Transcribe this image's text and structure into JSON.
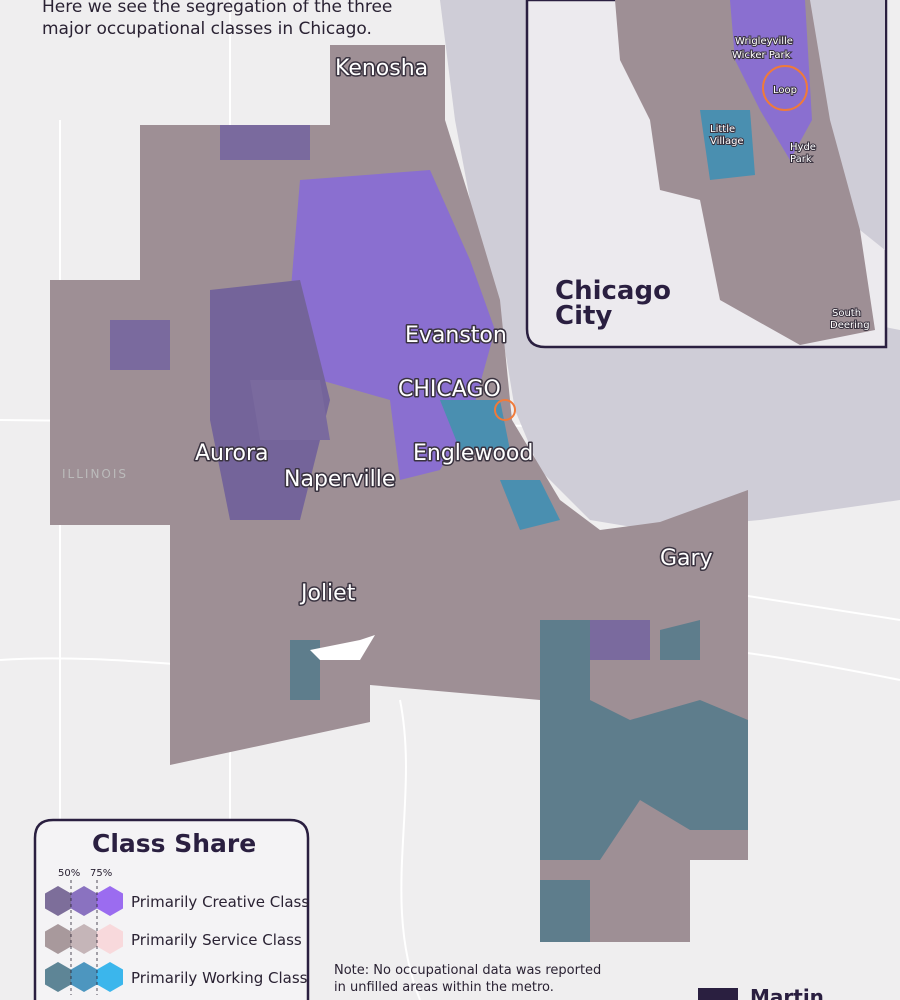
{
  "header": {
    "intro": [
      "Here we see the segregation of the three",
      "major occupational classes in Chicago."
    ]
  },
  "map": {
    "places": [
      "Kenosha",
      "Evanston",
      "CHICAGO",
      "Aurora",
      "Naperville",
      "Englewood",
      "Gary",
      "Joliet",
      "ILLINOIS"
    ]
  },
  "inset": {
    "title": [
      "Chicago",
      "City"
    ],
    "places": [
      "Wrigleyville",
      "Wicker Park",
      "Loop",
      "Little",
      "Village",
      "Hyde",
      "Park",
      "South",
      "Deering"
    ]
  },
  "legend": {
    "title": "Class Share",
    "thresholds": [
      "50%",
      "75%"
    ],
    "classes": [
      "Primarily Creative Class",
      "Primarily Service Class",
      "Primarily Working Class"
    ]
  },
  "note": [
    "Note: No occupational data was reported",
    "in unfilled areas within the metro."
  ],
  "logo": "Martin"
}
